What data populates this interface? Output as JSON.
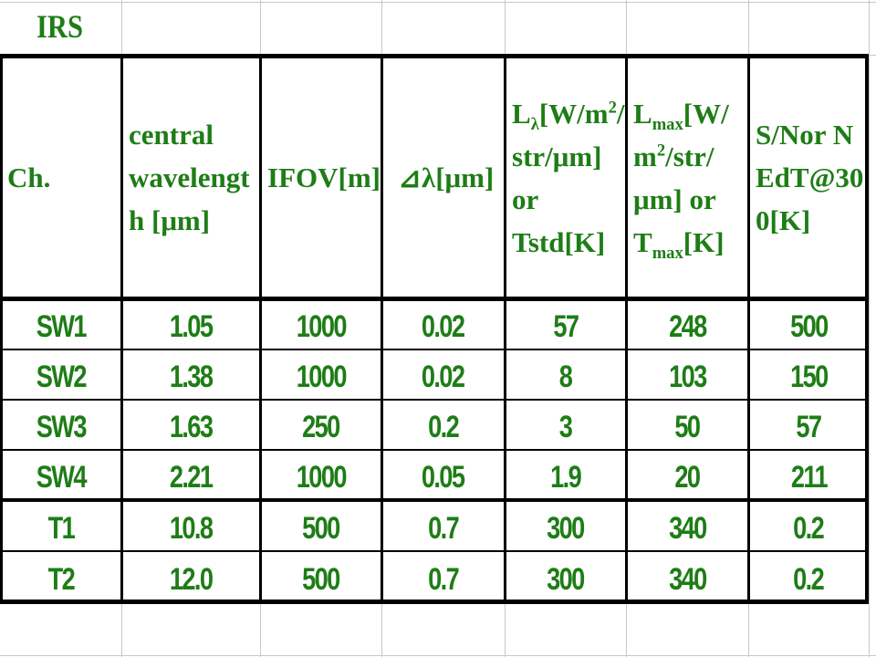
{
  "title": "IRS",
  "table": {
    "header": [
      [
        "Ch."
      ],
      [
        "central wavelength [μm]"
      ],
      [
        "IFOV[m]"
      ],
      [
        "⊿λ[μm]"
      ],
      [
        "L",
        "λ",
        "[W/m",
        "2",
        "/str/μm] or Tstd[K]"
      ],
      [
        "L",
        "max",
        "[W/m",
        "2",
        "/str/μm] or T",
        "max",
        "[K]"
      ],
      [
        "S/Nor NEdT@300[K]"
      ]
    ],
    "rows": [
      [
        "SW1",
        "1.05",
        "1000",
        "0.02",
        "57",
        "248",
        "500"
      ],
      [
        "SW2",
        "1.38",
        "1000",
        "0.02",
        "8",
        "103",
        "150"
      ],
      [
        "SW3",
        "1.63",
        "250",
        "0.2",
        "3",
        "50",
        "57"
      ],
      [
        "SW4",
        "2.21",
        "1000",
        "0.05",
        "1.9",
        "20",
        "211"
      ],
      [
        "T1",
        "10.8",
        "500",
        "0.7",
        "300",
        "340",
        "0.2"
      ],
      [
        "T2",
        "12.0",
        "500",
        "0.7",
        "300",
        "340",
        "0.2"
      ]
    ]
  }
}
